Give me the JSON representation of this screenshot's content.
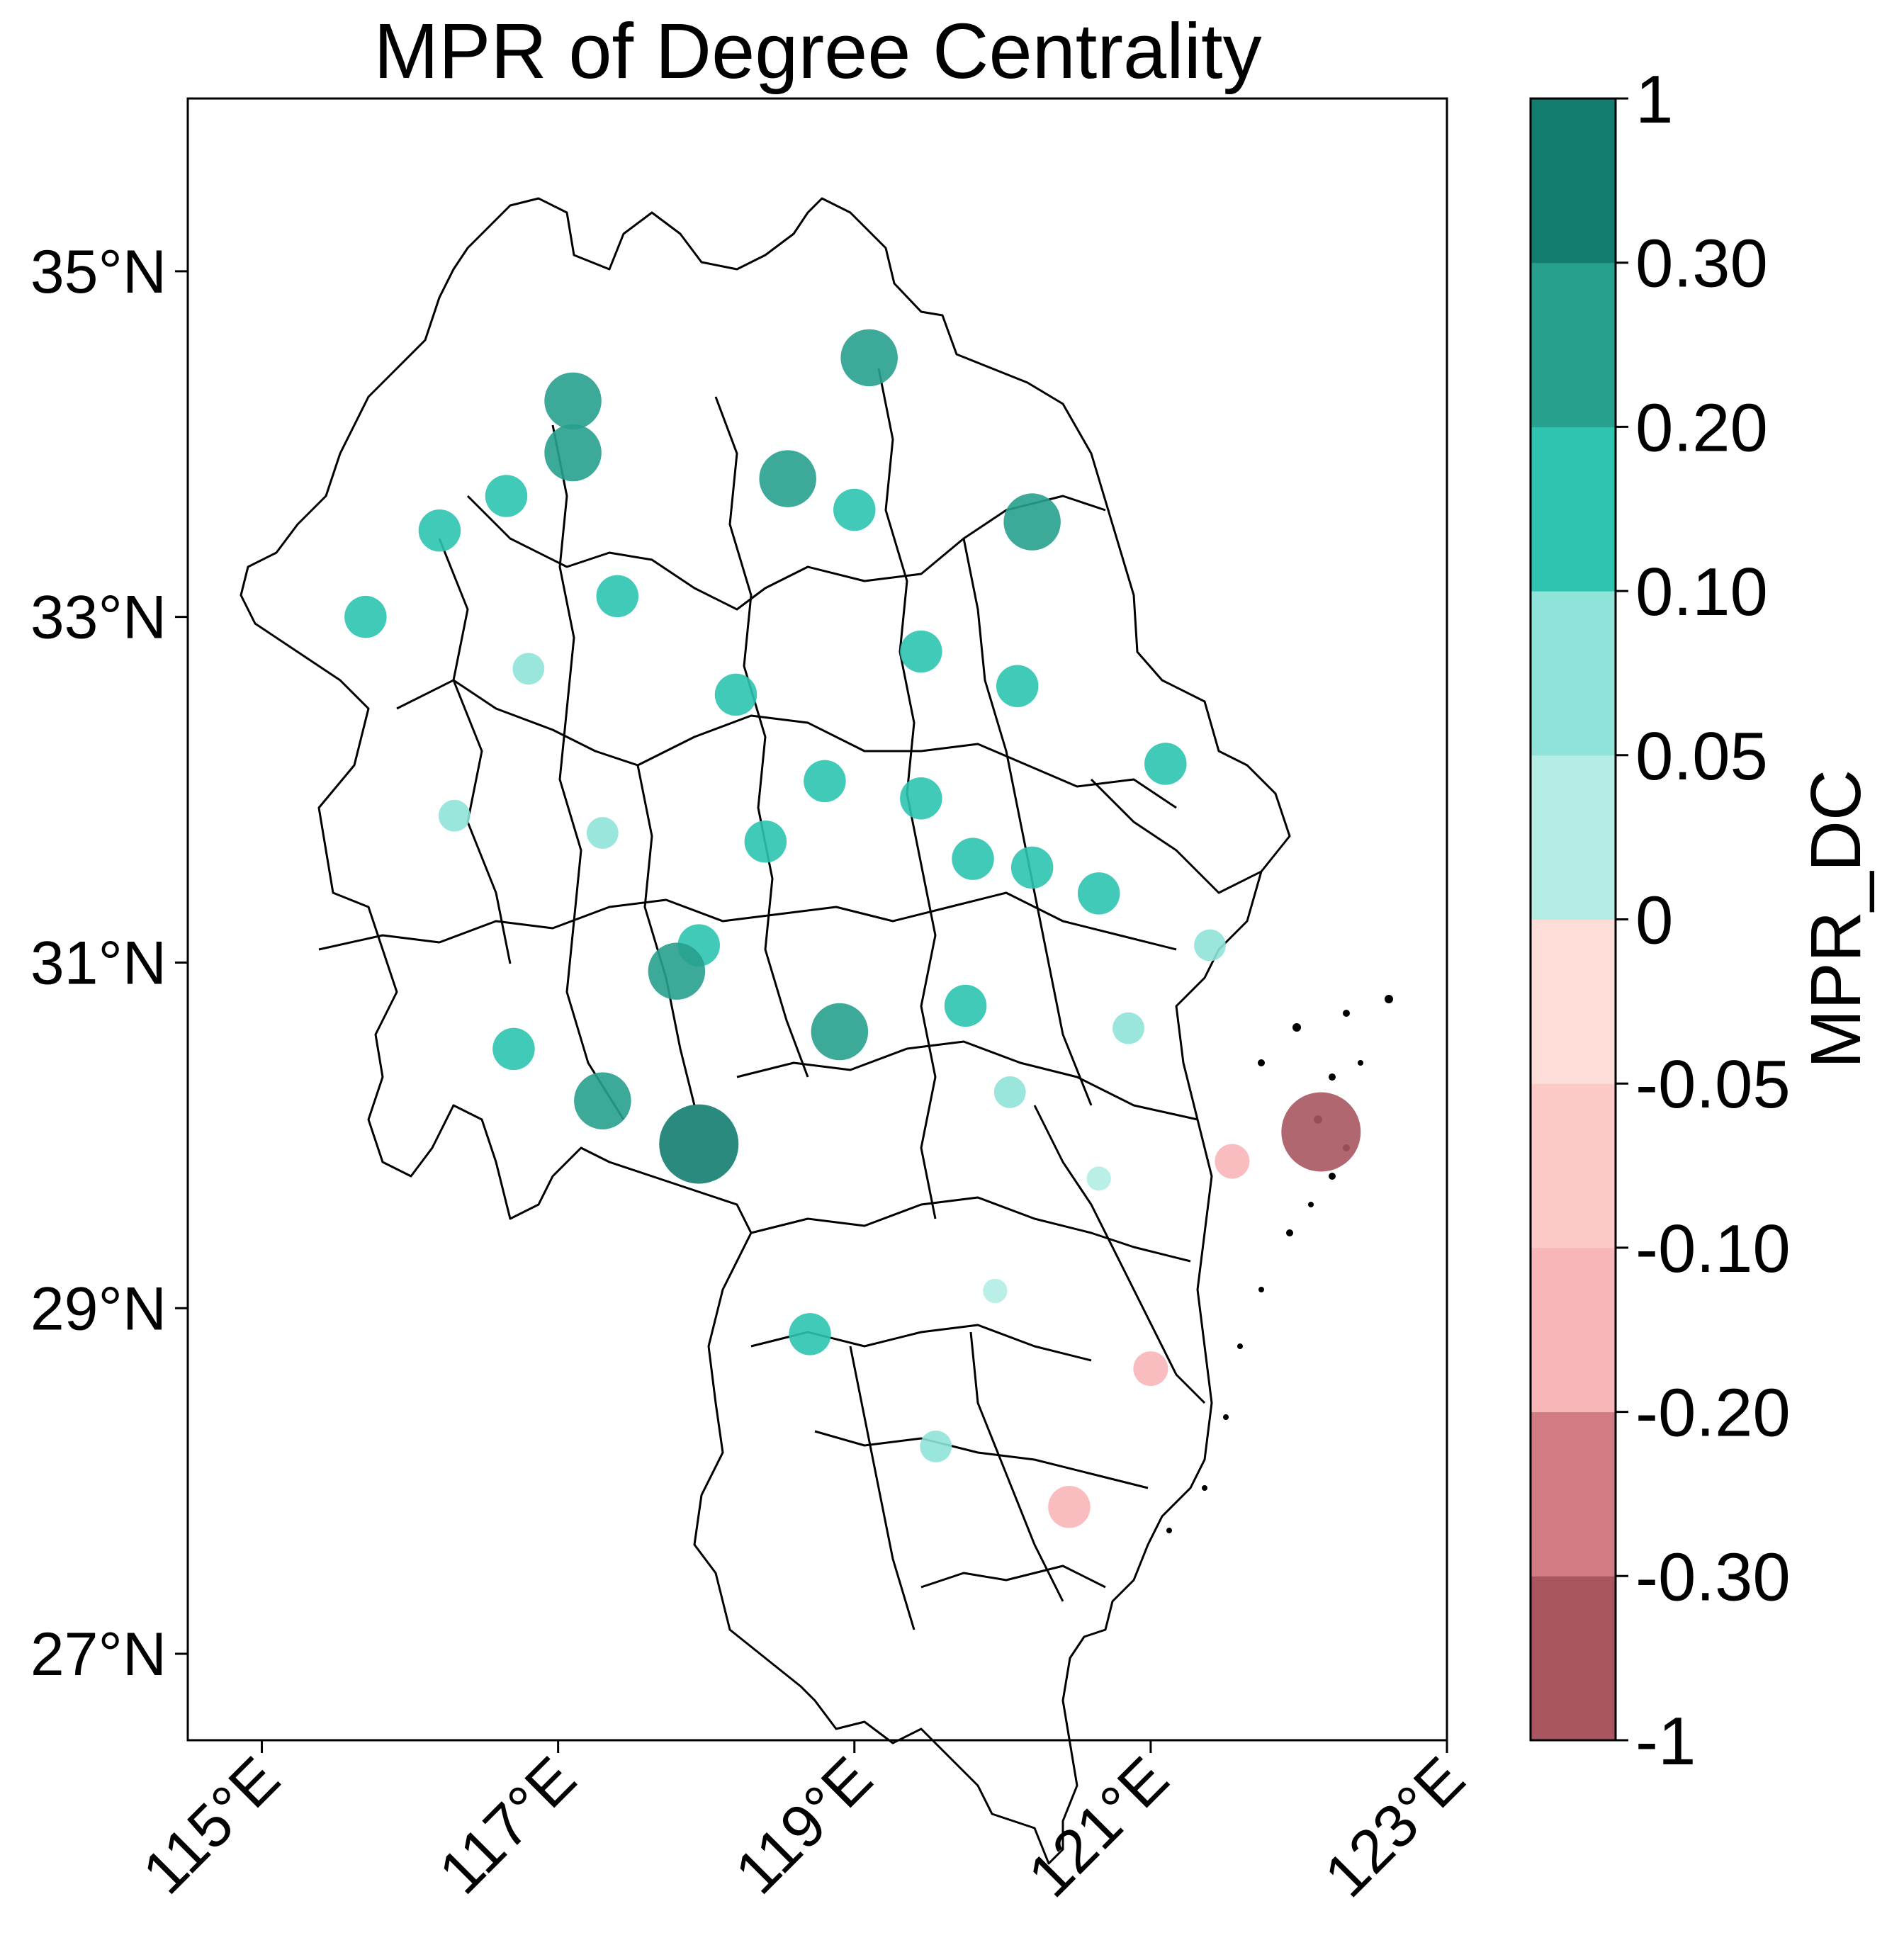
{
  "chart_data": {
    "type": "scatter",
    "title": "MPR of Degree Centrality",
    "colorbar_label": "MPR_DC",
    "xlim": [
      114.5,
      123
    ],
    "ylim": [
      26.5,
      36
    ],
    "x_ticks": [
      {
        "value": 115,
        "label": "115°E"
      },
      {
        "value": 117,
        "label": "117°E"
      },
      {
        "value": 119,
        "label": "119°E"
      },
      {
        "value": 121,
        "label": "121°E"
      },
      {
        "value": 123,
        "label": "123°E"
      }
    ],
    "y_ticks": [
      {
        "value": 27,
        "label": "27°N"
      },
      {
        "value": 29,
        "label": "29°N"
      },
      {
        "value": 31,
        "label": "31°N"
      },
      {
        "value": 33,
        "label": "33°N"
      },
      {
        "value": 35,
        "label": "35°N"
      }
    ],
    "colorbar": {
      "bounds": [
        "-1",
        "-0.30",
        "-0.20",
        "-0.10",
        "-0.05",
        "0",
        "0.05",
        "0.10",
        "0.20",
        "0.30",
        "1"
      ],
      "colors": [
        "#a95660",
        "#d17b83",
        "#f9b6b8",
        "#fbcac7",
        "#fcddd8",
        "#b3ede4",
        "#8fe3d8",
        "#2ec4b0",
        "#27a08e",
        "#137d70"
      ]
    },
    "points": [
      {
        "lon": 119.1,
        "lat": 34.5,
        "value": 0.25
      },
      {
        "lon": 117.1,
        "lat": 34.25,
        "value": 0.25
      },
      {
        "lon": 117.1,
        "lat": 33.95,
        "value": 0.25
      },
      {
        "lon": 116.65,
        "lat": 33.7,
        "value": 0.15
      },
      {
        "lon": 116.2,
        "lat": 33.5,
        "value": 0.15
      },
      {
        "lon": 115.7,
        "lat": 33.0,
        "value": 0.15
      },
      {
        "lon": 118.55,
        "lat": 33.8,
        "value": 0.25
      },
      {
        "lon": 119.0,
        "lat": 33.62,
        "value": 0.15
      },
      {
        "lon": 120.2,
        "lat": 33.55,
        "value": 0.25
      },
      {
        "lon": 117.4,
        "lat": 33.12,
        "value": 0.15
      },
      {
        "lon": 116.8,
        "lat": 32.7,
        "value": 0.08
      },
      {
        "lon": 118.2,
        "lat": 32.55,
        "value": 0.15
      },
      {
        "lon": 119.45,
        "lat": 32.8,
        "value": 0.15
      },
      {
        "lon": 120.1,
        "lat": 32.6,
        "value": 0.15
      },
      {
        "lon": 121.1,
        "lat": 32.15,
        "value": 0.15
      },
      {
        "lon": 116.3,
        "lat": 31.85,
        "value": 0.08
      },
      {
        "lon": 117.3,
        "lat": 31.75,
        "value": 0.08
      },
      {
        "lon": 118.8,
        "lat": 32.05,
        "value": 0.15
      },
      {
        "lon": 119.45,
        "lat": 31.95,
        "value": 0.15
      },
      {
        "lon": 118.4,
        "lat": 31.7,
        "value": 0.15
      },
      {
        "lon": 119.8,
        "lat": 31.6,
        "value": 0.15
      },
      {
        "lon": 120.2,
        "lat": 31.55,
        "value": 0.15
      },
      {
        "lon": 120.65,
        "lat": 31.4,
        "value": 0.15
      },
      {
        "lon": 121.4,
        "lat": 31.1,
        "value": 0.08
      },
      {
        "lon": 117.95,
        "lat": 31.1,
        "value": 0.15
      },
      {
        "lon": 117.8,
        "lat": 30.95,
        "value": 0.25
      },
      {
        "lon": 118.9,
        "lat": 30.6,
        "value": 0.25
      },
      {
        "lon": 119.75,
        "lat": 30.75,
        "value": 0.15
      },
      {
        "lon": 120.85,
        "lat": 30.62,
        "value": 0.08
      },
      {
        "lon": 116.7,
        "lat": 30.5,
        "value": 0.15
      },
      {
        "lon": 117.3,
        "lat": 30.2,
        "value": 0.25
      },
      {
        "lon": 120.05,
        "lat": 30.25,
        "value": 0.08
      },
      {
        "lon": 117.95,
        "lat": 29.95,
        "value": 0.4
      },
      {
        "lon": 122.15,
        "lat": 30.02,
        "value": -0.4
      },
      {
        "lon": 121.55,
        "lat": 29.85,
        "value": -0.1
      },
      {
        "lon": 120.65,
        "lat": 29.75,
        "value": 0.03
      },
      {
        "lon": 119.95,
        "lat": 29.1,
        "value": 0.03
      },
      {
        "lon": 118.7,
        "lat": 28.85,
        "value": 0.15
      },
      {
        "lon": 121.0,
        "lat": 28.65,
        "value": -0.1
      },
      {
        "lon": 119.55,
        "lat": 28.2,
        "value": 0.08
      },
      {
        "lon": 120.45,
        "lat": 27.85,
        "value": -0.15
      }
    ]
  }
}
